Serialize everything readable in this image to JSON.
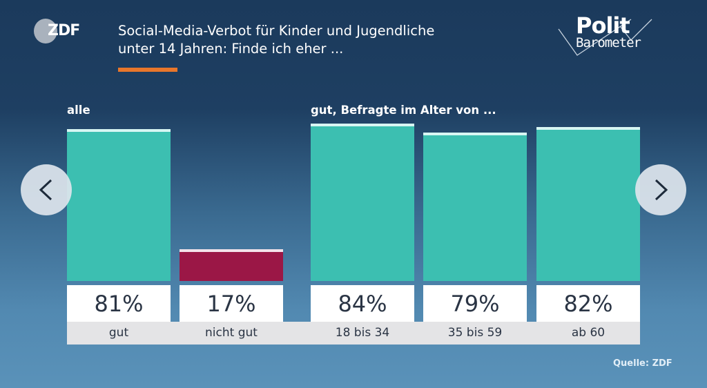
{
  "header": {
    "brand": "ZDF",
    "title_line1": "Social-Media-Verbot für Kinder und Jugendliche",
    "title_line2": "unter 14 Jahren: Finde ich eher ...",
    "logo_line1": "Polit",
    "logo_line2": "Barometer",
    "accent_color": "#e8762b"
  },
  "navigation": {
    "prev_icon": "chevron-left-icon",
    "next_icon": "chevron-right-icon"
  },
  "footer": {
    "source": "Quelle: ZDF"
  },
  "chart_data": {
    "type": "bar",
    "title": "Social-Media-Verbot für Kinder und Jugendliche unter 14 Jahren: Finde ich eher ...",
    "xlabel": "",
    "ylabel": "",
    "ylim": [
      0,
      100
    ],
    "unit": "%",
    "groups": [
      {
        "label": "alle",
        "categories": [
          "gut",
          "nicht gut"
        ]
      },
      {
        "label": "gut, Befragte im Alter von ...",
        "categories": [
          "18 bis 34",
          "35 bis 59",
          "ab 60"
        ]
      }
    ],
    "categories": [
      "gut",
      "nicht gut",
      "18 bis 34",
      "35 bis 59",
      "ab 60"
    ],
    "values": [
      81,
      17,
      84,
      79,
      82
    ],
    "value_labels": [
      "81%",
      "17%",
      "84%",
      "79%",
      "82%"
    ],
    "colors": [
      "#3cbfb1",
      "#9b1746",
      "#3cbfb1",
      "#3cbfb1",
      "#3cbfb1"
    ],
    "grid": false,
    "legend": "none"
  }
}
